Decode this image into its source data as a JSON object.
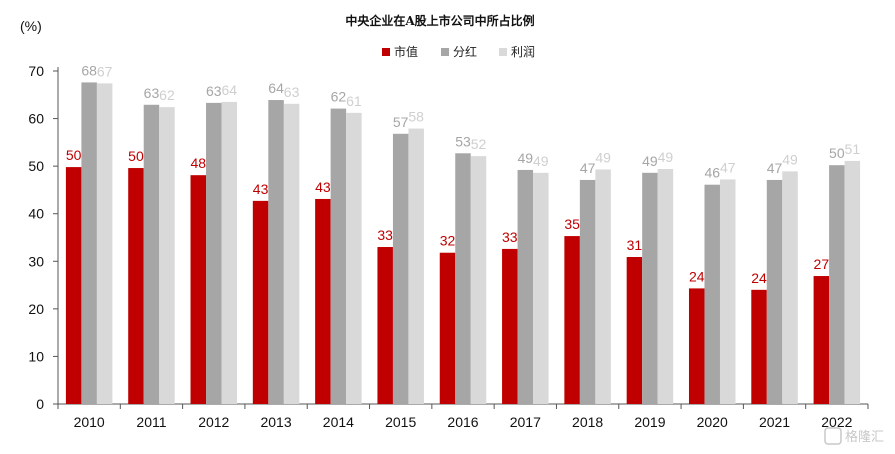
{
  "chart_data": {
    "type": "bar",
    "title": "中央企业在A股上市公司中所占比例",
    "unit_label": "(%)",
    "categories": [
      "2010",
      "2011",
      "2012",
      "2013",
      "2014",
      "2015",
      "2016",
      "2017",
      "2018",
      "2019",
      "2020",
      "2021",
      "2022"
    ],
    "series": [
      {
        "name": "市值",
        "color": "#c00000",
        "label_color": "#c00000",
        "values": [
          49.8,
          49.6,
          48.1,
          42.7,
          43.1,
          33.0,
          31.8,
          32.6,
          35.3,
          30.9,
          24.3,
          24.0,
          26.9
        ],
        "labels": [
          "50",
          "50",
          "48",
          "43",
          "43",
          "33",
          "32",
          "33",
          "35",
          "31",
          "24",
          "24",
          "27"
        ]
      },
      {
        "name": "分红",
        "color": "#a6a6a6",
        "label_color": "#a6a6a6",
        "values": [
          67.6,
          62.9,
          63.3,
          63.9,
          62.1,
          56.8,
          52.7,
          49.2,
          47.1,
          48.6,
          46.1,
          47.1,
          50.2
        ],
        "labels": [
          "68",
          "63",
          "63",
          "64",
          "62",
          "57",
          "53",
          "49",
          "47",
          "49",
          "46",
          "47",
          "50"
        ]
      },
      {
        "name": "利润",
        "color": "#d9d9d9",
        "label_color": "#cfcfcf",
        "values": [
          67.4,
          62.4,
          63.5,
          63.1,
          61.2,
          57.9,
          52.1,
          48.6,
          49.3,
          49.4,
          47.2,
          48.9,
          51.1
        ],
        "labels": [
          "67",
          "62",
          "64",
          "63",
          "61",
          "58",
          "52",
          "49",
          "49",
          "49",
          "47",
          "49",
          "51"
        ]
      }
    ],
    "ylim": [
      0,
      70
    ],
    "yticks": [
      0,
      10,
      20,
      30,
      40,
      50,
      60,
      70
    ],
    "grid": false,
    "legend_position": "top-right"
  },
  "watermark": "格隆汇"
}
